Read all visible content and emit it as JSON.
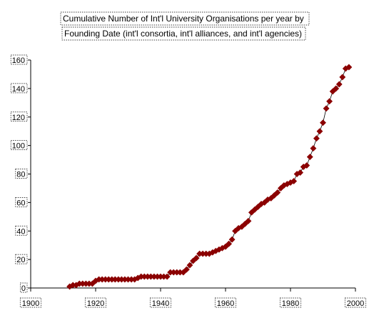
{
  "chart_data": {
    "type": "scatter",
    "title_lines": [
      "Cumulative Number of Int'l University Organisations per year by",
      "Founding Date (int'l consortia, int'l alliances, and int'l agencies)"
    ],
    "xlabel": "",
    "ylabel": "",
    "xlim": [
      1900,
      2000
    ],
    "ylim": [
      0,
      160
    ],
    "x_ticks": [
      "1900",
      "1920",
      "1940",
      "1960",
      "1980",
      "2000"
    ],
    "y_ticks": [
      "0",
      "20",
      "40",
      "60",
      "80",
      "100",
      "120",
      "140",
      "160"
    ],
    "marker": "diamond",
    "connect_points": true,
    "grid": false,
    "legend": "none",
    "colors": {
      "marker": "#8B0000",
      "line": "#000000",
      "axis": "#000000"
    },
    "series": [
      {
        "x": [
          1912,
          1913,
          1914,
          1915,
          1916,
          1917,
          1918,
          1919,
          1920,
          1921,
          1922,
          1923,
          1924,
          1925,
          1926,
          1927,
          1928,
          1929,
          1930,
          1931,
          1932,
          1933,
          1934,
          1935,
          1936,
          1937,
          1938,
          1939,
          1940,
          1941,
          1942,
          1943,
          1944,
          1945,
          1946,
          1947,
          1948,
          1949,
          1950,
          1951,
          1952,
          1953,
          1954,
          1955,
          1956,
          1957,
          1958,
          1959,
          1960,
          1961,
          1962,
          1963,
          1964,
          1965,
          1966,
          1967,
          1968,
          1969,
          1970,
          1971,
          1972,
          1973,
          1974,
          1975,
          1976,
          1977,
          1978,
          1979,
          1980,
          1981,
          1982,
          1983,
          1984,
          1985,
          1986,
          1987,
          1988,
          1989,
          1990,
          1991,
          1992,
          1993,
          1994,
          1995,
          1996,
          1997,
          1998
        ],
        "y": [
          1,
          2,
          2,
          3,
          3,
          3,
          3,
          3,
          5,
          6,
          6,
          6,
          6,
          6,
          6,
          6,
          6,
          6,
          6,
          6,
          6,
          7,
          8,
          8,
          8,
          8,
          8,
          8,
          8,
          8,
          8,
          11,
          11,
          11,
          11,
          11,
          13,
          16,
          19,
          21,
          24,
          24,
          24,
          24,
          25,
          26,
          27,
          28,
          29,
          31,
          34,
          40,
          42,
          43,
          45,
          47,
          53,
          55,
          57,
          59,
          60,
          62,
          63,
          65,
          67,
          70,
          72,
          73,
          74,
          75,
          80,
          81,
          85,
          86,
          92,
          98,
          105,
          110,
          116,
          126,
          131,
          138,
          140,
          143,
          148,
          154,
          155
        ]
      }
    ]
  }
}
